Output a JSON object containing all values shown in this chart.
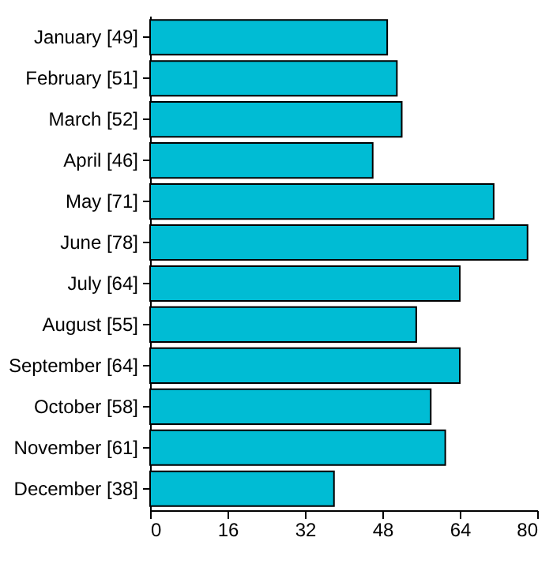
{
  "chart_data": {
    "type": "bar",
    "orientation": "horizontal",
    "categories": [
      "January [49]",
      "February [51]",
      "March [52]",
      "April [46]",
      "May [71]",
      "June [78]",
      "July [64]",
      "August [55]",
      "September [64]",
      "October [58]",
      "November [61]",
      "December [38]"
    ],
    "values": [
      49,
      51,
      52,
      46,
      71,
      78,
      64,
      55,
      64,
      58,
      61,
      38
    ],
    "color": "#00bcd4",
    "xlim": [
      0,
      80
    ],
    "xticks": [
      0,
      16,
      32,
      48,
      64,
      80
    ],
    "grid": false
  }
}
